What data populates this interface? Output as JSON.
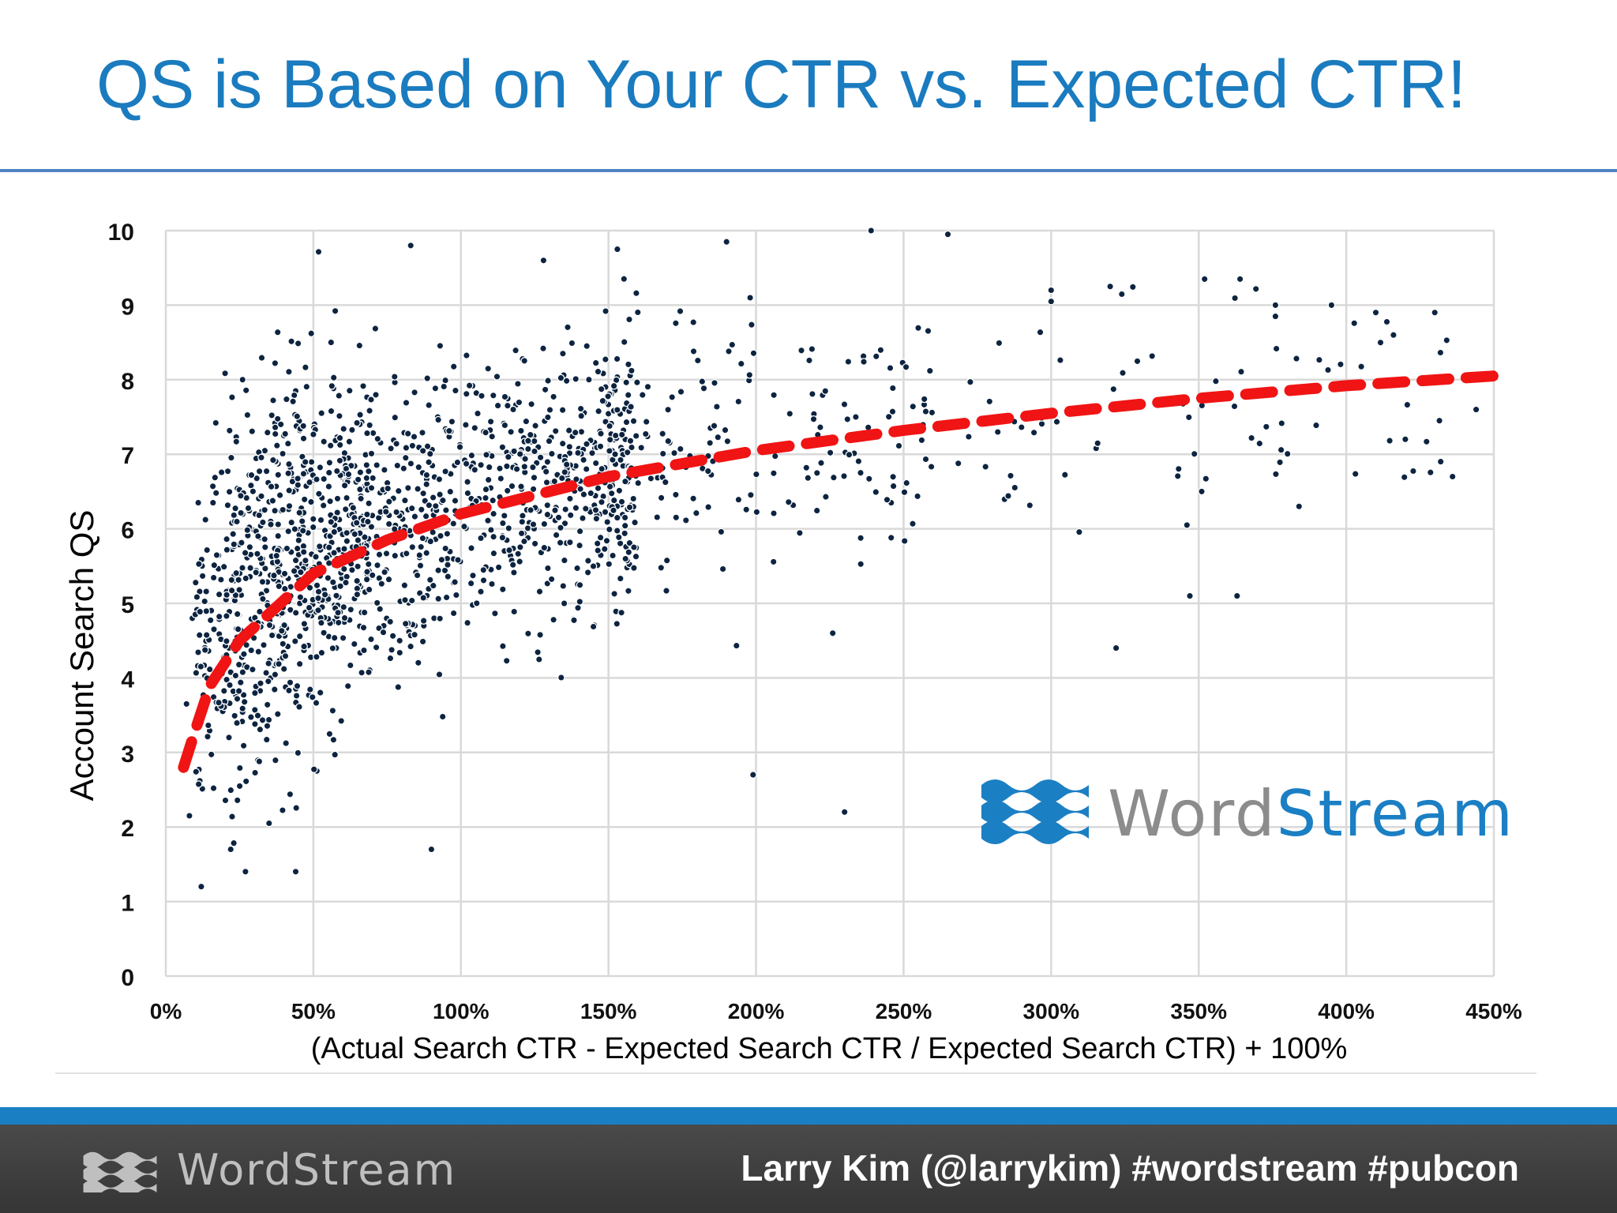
{
  "slide": {
    "title": "QS is Based on Your CTR vs. Expected CTR!"
  },
  "watermark": {
    "brand_word": "Word",
    "brand_stream": "Stream",
    "icon": "wave-logo-icon"
  },
  "footer": {
    "brand": "WordStream",
    "credit": "Larry Kim (@larrykim) #wordstream #pubcon",
    "icon": "wave-logo-icon"
  },
  "colors": {
    "title": "#1a7bbf",
    "points": "#0d2440",
    "trend": "#f01414",
    "grid": "#d9d9d9",
    "brand_blue": "#1b7fc4",
    "brand_gray": "#8c8c8c"
  },
  "chart_data": {
    "type": "scatter",
    "xlabel": "(Actual Search CTR - Expected Search CTR / Expected Search CTR) + 100%",
    "ylabel": "Account Search QS",
    "xlim": [
      0,
      450
    ],
    "ylim": [
      0,
      10
    ],
    "x_ticks": [
      "0%",
      "50%",
      "100%",
      "150%",
      "200%",
      "250%",
      "300%",
      "350%",
      "400%",
      "450%"
    ],
    "y_ticks": [
      "0",
      "1",
      "2",
      "3",
      "4",
      "5",
      "6",
      "7",
      "8",
      "9",
      "10"
    ],
    "grid": true,
    "trendline": {
      "style": "dashed",
      "kind": "logarithmic",
      "points": [
        [
          6,
          2.8
        ],
        [
          10,
          3.3
        ],
        [
          15,
          3.9
        ],
        [
          25,
          4.5
        ],
        [
          50,
          5.4
        ],
        [
          75,
          5.85
        ],
        [
          100,
          6.2
        ],
        [
          125,
          6.45
        ],
        [
          150,
          6.7
        ],
        [
          200,
          7.05
        ],
        [
          250,
          7.32
        ],
        [
          300,
          7.55
        ],
        [
          350,
          7.75
        ],
        [
          400,
          7.92
        ],
        [
          450,
          8.05
        ]
      ]
    },
    "point_count_approx": 1700,
    "sample_points": [
      [
        83,
        9.8
      ],
      [
        239,
        10.0
      ],
      [
        265,
        9.95
      ],
      [
        190,
        9.85
      ],
      [
        153,
        9.75
      ],
      [
        128,
        9.6
      ],
      [
        198,
        9.1
      ],
      [
        300,
        9.2
      ],
      [
        352,
        9.35
      ],
      [
        395,
        9.0
      ],
      [
        430,
        8.9
      ],
      [
        26,
        8.0
      ],
      [
        56,
        8.5
      ],
      [
        300,
        9.05
      ],
      [
        320,
        9.25
      ],
      [
        364,
        9.35
      ],
      [
        376,
        9.0
      ],
      [
        416,
        8.6
      ],
      [
        410,
        8.9
      ],
      [
        376,
        8.85
      ],
      [
        322,
        4.4
      ],
      [
        347,
        5.1
      ],
      [
        363,
        5.1
      ],
      [
        230,
        2.2
      ],
      [
        199,
        2.7
      ],
      [
        90,
        1.7
      ],
      [
        12,
        1.2
      ],
      [
        44,
        1.4
      ],
      [
        27,
        1.4
      ],
      [
        8,
        2.15
      ],
      [
        22,
        1.7
      ],
      [
        35,
        2.05
      ],
      [
        420,
        7.2
      ],
      [
        436,
        6.7
      ],
      [
        444,
        7.6
      ],
      [
        432,
        6.9
      ],
      [
        384,
        6.3
      ],
      [
        346,
        6.05
      ],
      [
        351,
        6.5
      ],
      [
        226,
        4.6
      ],
      [
        9,
        4.8
      ],
      [
        7,
        3.65
      ],
      [
        16,
        6.35
      ],
      [
        11,
        6.35
      ],
      [
        44,
        7.85
      ],
      [
        40,
        7.25
      ]
    ]
  }
}
